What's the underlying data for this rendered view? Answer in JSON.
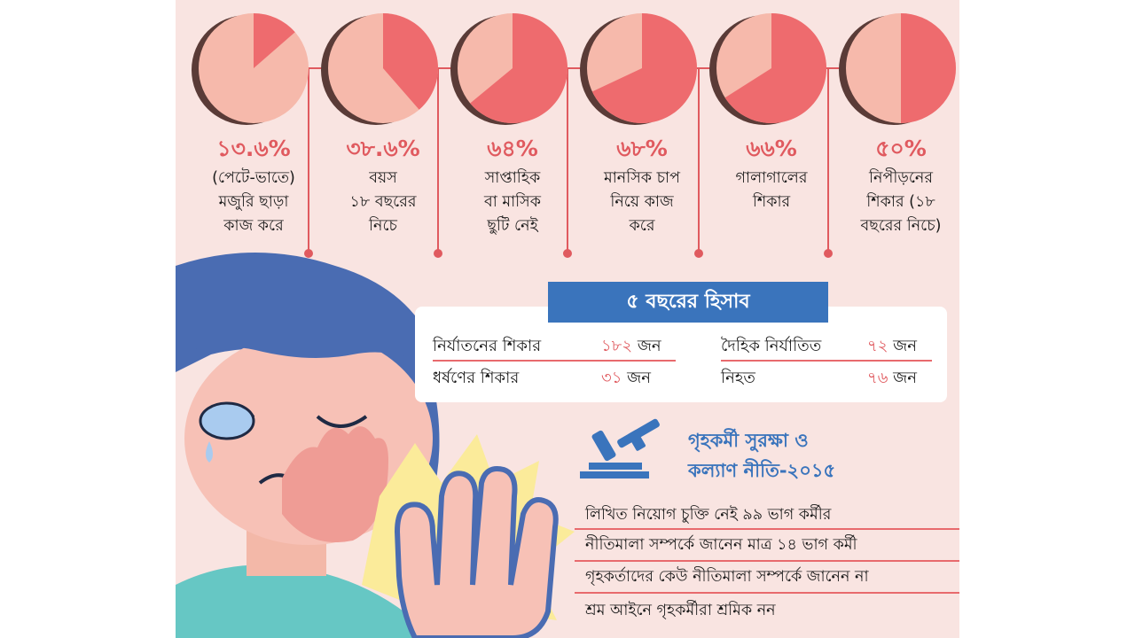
{
  "colors": {
    "background": "#f9e4e1",
    "accent_red": "#e05a5f",
    "pie_light": "#f6b9ab",
    "pie_dark": "#ee6b6e",
    "pie_edge": "#5a3b37",
    "banner_blue": "#3a74bc"
  },
  "chart_data": {
    "type": "pie",
    "series": [
      {
        "label": "১৩.৬%",
        "value": 13.6,
        "description": [
          "(পেটে-ভাতে)",
          "মজুরি ছাড়া",
          "কাজ করে"
        ]
      },
      {
        "label": "৩৮.৬%",
        "value": 38.6,
        "description": [
          "বয়স",
          "১৮ বছরের",
          "নিচে"
        ]
      },
      {
        "label": "৬৪%",
        "value": 64,
        "description": [
          "সাপ্তাহিক",
          "বা মাসিক",
          "ছুটি নেই"
        ]
      },
      {
        "label": "৬৮%",
        "value": 68,
        "description": [
          "মানসিক চাপ",
          "নিয়ে কাজ",
          "করে"
        ]
      },
      {
        "label": "৬৬%",
        "value": 66,
        "description": [
          "গালাগালের",
          "শিকার"
        ]
      },
      {
        "label": "৫০%",
        "value": 50,
        "description": [
          "নিপীড়নের",
          "শিকার (১৮",
          "বছরের নিচে)"
        ]
      }
    ]
  },
  "summary": {
    "title": "৫ বছরের হিসাব",
    "rows": [
      {
        "label": "নির্যাতনের শিকার",
        "count": "১৮২",
        "unit": "জন"
      },
      {
        "label": "ধর্ষণের শিকার",
        "count": "৩১",
        "unit": "জন"
      },
      {
        "label": "দৈহিক নির্যাতিত",
        "count": "৭২",
        "unit": "জন"
      },
      {
        "label": "নিহত",
        "count": "৭৬",
        "unit": "জন"
      }
    ]
  },
  "policy": {
    "title_line1": "গৃহকর্মী সুরক্ষা ও",
    "title_line2": "কল্যাণ নীতি-২০১৫",
    "icon": "gavel-icon",
    "facts": [
      "লিখিত নিয়োগ চুক্তি নেই ৯৯ ভাগ কর্মীর",
      "নীতিমালা সম্পর্কে জানেন মাত্র ১৪ ভাগ কর্মী",
      "গৃহকর্তাদের কেউ নীতিমালা সম্পর্কে জানেন না",
      "শ্রম আইনে গৃহকর্মীরা শ্রমিক নন"
    ]
  },
  "illustration": {
    "icon": "crying-woman-illustration"
  }
}
